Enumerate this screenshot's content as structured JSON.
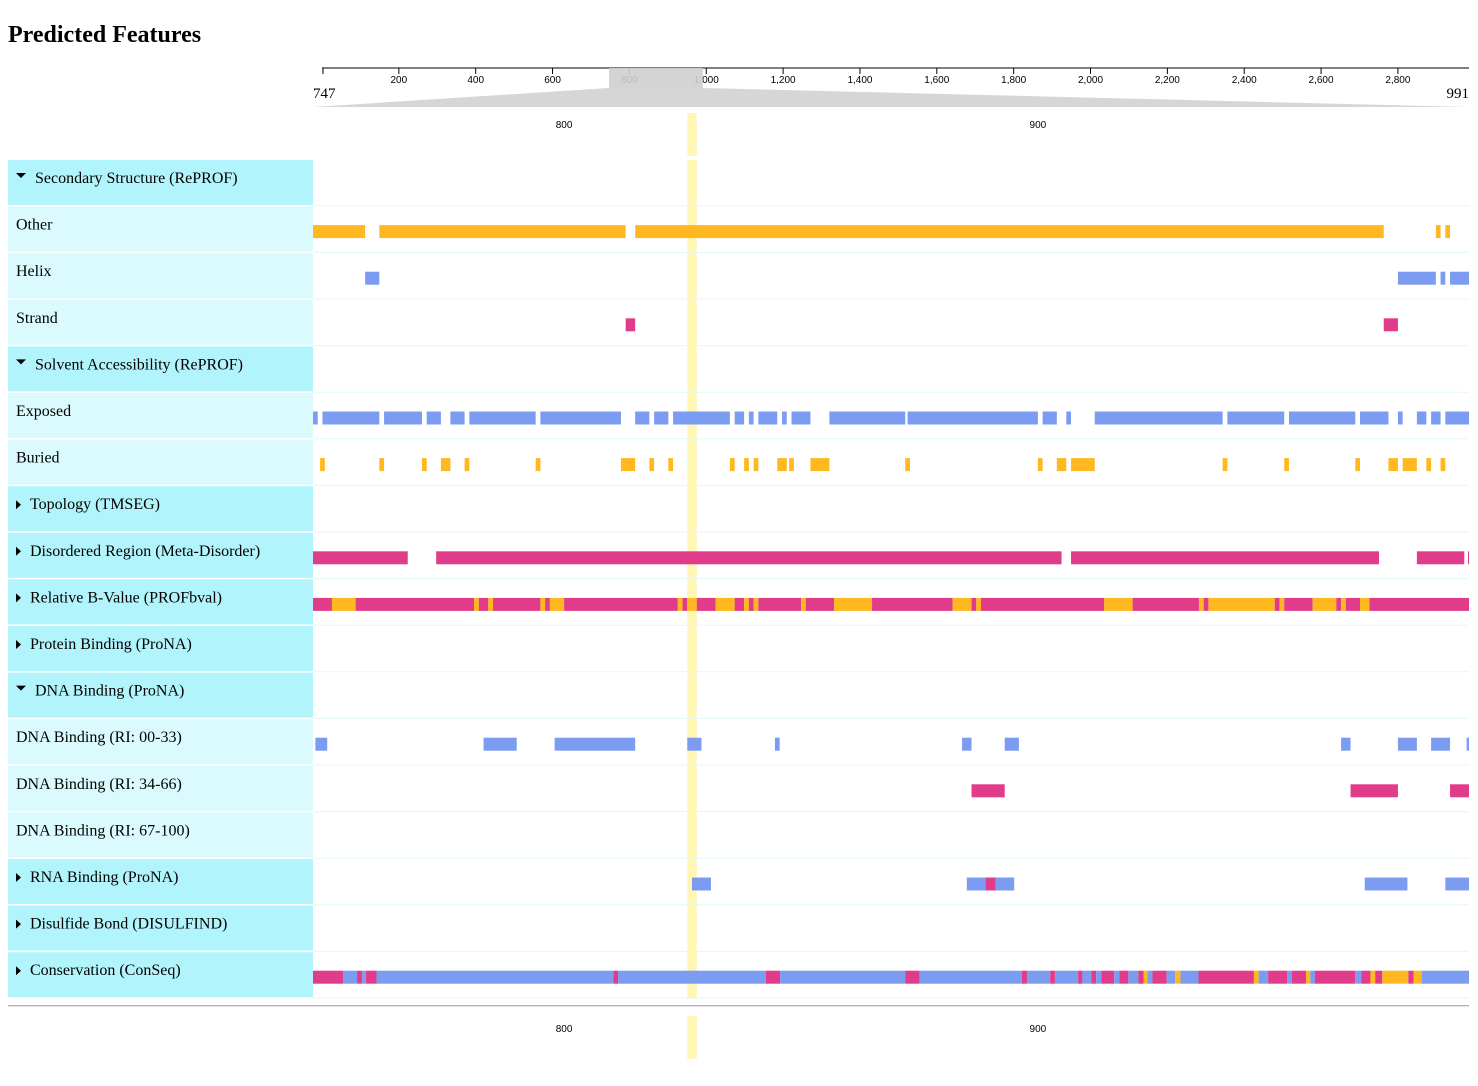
{
  "title": "Predicted Features",
  "overview": {
    "xlim": [
      0,
      2985
    ],
    "xticks": [
      200,
      400,
      600,
      800,
      {
        "value": 1000,
        "label": "1,000"
      },
      {
        "value": 1200,
        "label": "1,200"
      },
      {
        "value": 1400,
        "label": "1,400"
      },
      {
        "value": 1600,
        "label": "1,600"
      },
      {
        "value": 1800,
        "label": "1,800"
      },
      {
        "value": 2000,
        "label": "2,000"
      },
      {
        "value": 2200,
        "label": "2,200"
      },
      {
        "value": 2400,
        "label": "2,400"
      },
      {
        "value": 2600,
        "label": "2,600"
      },
      {
        "value": 2800,
        "label": "2,800"
      }
    ]
  },
  "view": {
    "start": 747,
    "end": 991,
    "ticks": [
      800,
      900
    ],
    "highlight": [
      826,
      828
    ]
  },
  "palette": [
    "#ffb81f",
    "#7b9cf0",
    "#e03c8a"
  ],
  "tracks": [
    {
      "label": "Secondary Structure (RePROF)",
      "expanded": true,
      "rows": [
        {
          "label": "Other",
          "features": [
            [
              747,
              758,
              0
            ],
            [
              761,
              813,
              0
            ],
            [
              815,
              973,
              0
            ],
            [
              984,
              985,
              0
            ],
            [
              986,
              987,
              0
            ]
          ]
        },
        {
          "label": "Helix",
          "features": [
            [
              758,
              761,
              1
            ],
            [
              976,
              984,
              1
            ],
            [
              985,
              986,
              1
            ],
            [
              987,
              991,
              1
            ]
          ]
        },
        {
          "label": "Strand",
          "features": [
            [
              813,
              815,
              2
            ],
            [
              973,
              976,
              2
            ]
          ]
        }
      ]
    },
    {
      "label": "Solvent Accessibility (RePROF)",
      "expanded": true,
      "rows": [
        {
          "label": "Exposed",
          "features": [
            [
              747,
              748,
              1
            ],
            [
              749,
              761,
              1
            ],
            [
              762,
              770,
              1
            ],
            [
              771,
              774,
              1
            ],
            [
              776,
              779,
              1
            ],
            [
              780,
              794,
              1
            ],
            [
              795,
              812,
              1
            ],
            [
              815,
              818,
              1
            ],
            [
              819,
              822,
              1
            ],
            [
              823,
              835,
              1
            ],
            [
              836,
              838,
              1
            ],
            [
              839,
              840,
              1
            ],
            [
              841,
              845,
              1
            ],
            [
              846,
              847,
              1
            ],
            [
              848,
              852,
              1
            ],
            [
              856,
              872,
              1
            ],
            [
              872.5,
              900,
              1
            ],
            [
              901,
              904,
              1
            ],
            [
              906,
              907,
              1
            ],
            [
              912,
              939,
              1
            ],
            [
              940,
              952,
              1
            ],
            [
              953,
              967,
              1
            ],
            [
              968,
              974,
              1
            ],
            [
              976,
              977,
              1
            ],
            [
              980,
              982,
              1
            ],
            [
              983,
              985,
              1
            ],
            [
              986,
              991,
              1
            ]
          ]
        },
        {
          "label": "Buried",
          "features": [
            [
              748.5,
              749.5,
              0
            ],
            [
              761,
              762,
              0
            ],
            [
              770,
              771,
              0
            ],
            [
              774,
              776,
              0
            ],
            [
              779,
              780,
              0
            ],
            [
              794,
              795,
              0
            ],
            [
              812,
              815,
              0
            ],
            [
              818,
              819,
              0
            ],
            [
              822,
              823,
              0
            ],
            [
              835,
              836,
              0
            ],
            [
              838,
              839,
              0
            ],
            [
              840,
              841,
              0
            ],
            [
              845,
              847,
              0
            ],
            [
              847.5,
              848.5,
              0
            ],
            [
              852,
              856,
              0
            ],
            [
              872,
              873,
              0
            ],
            [
              900,
              901,
              0
            ],
            [
              904,
              906,
              0
            ],
            [
              907,
              912,
              0
            ],
            [
              939,
              940,
              0
            ],
            [
              952,
              953,
              0
            ],
            [
              967,
              968,
              0
            ],
            [
              974,
              976,
              0
            ],
            [
              977,
              980,
              0
            ],
            [
              982,
              983,
              0
            ],
            [
              985,
              986,
              0
            ]
          ]
        }
      ]
    },
    {
      "label": "Topology (TMSEG)",
      "expanded": false
    },
    {
      "label": "Disordered Region (Meta-Disorder)",
      "expanded": false,
      "features": [
        [
          747,
          767,
          2
        ],
        [
          773,
          905,
          2
        ],
        [
          907,
          972,
          2
        ],
        [
          980,
          990,
          2
        ],
        [
          990.8,
          991,
          2
        ]
      ]
    },
    {
      "label": "Relative B-Value (PROFbval)",
      "expanded": false,
      "features": [
        [
          747,
          751,
          2
        ],
        [
          751,
          756,
          0
        ],
        [
          756,
          781,
          2
        ],
        [
          781,
          782,
          0
        ],
        [
          782,
          784,
          2
        ],
        [
          784,
          785,
          0
        ],
        [
          785,
          795,
          2
        ],
        [
          795,
          796,
          0
        ],
        [
          796,
          797,
          2
        ],
        [
          797,
          800,
          0
        ],
        [
          800,
          824,
          2
        ],
        [
          824,
          825,
          0
        ],
        [
          825,
          826,
          2
        ],
        [
          826,
          828,
          0
        ],
        [
          828,
          832,
          2
        ],
        [
          832,
          836,
          0
        ],
        [
          836,
          838,
          2
        ],
        [
          838,
          839,
          0
        ],
        [
          839,
          840,
          2
        ],
        [
          840,
          841,
          0
        ],
        [
          841,
          850,
          2
        ],
        [
          850,
          851,
          0
        ],
        [
          851,
          857,
          2
        ],
        [
          857,
          865,
          0
        ],
        [
          865,
          882,
          2
        ],
        [
          882,
          886,
          0
        ],
        [
          886,
          887,
          2
        ],
        [
          887,
          888,
          0
        ],
        [
          888,
          914,
          2
        ],
        [
          914,
          920,
          0
        ],
        [
          920,
          934,
          2
        ],
        [
          934,
          935,
          0
        ],
        [
          935,
          936,
          2
        ],
        [
          936,
          950,
          0
        ],
        [
          950,
          951,
          2
        ],
        [
          951,
          952,
          0
        ],
        [
          952,
          958,
          2
        ],
        [
          958,
          963,
          0
        ],
        [
          963,
          964,
          2
        ],
        [
          964,
          965,
          0
        ],
        [
          965,
          968,
          2
        ],
        [
          968,
          970,
          0
        ],
        [
          970,
          991,
          2
        ]
      ]
    },
    {
      "label": "Protein Binding (ProNA)",
      "expanded": false
    },
    {
      "label": "DNA Binding (ProNA)",
      "expanded": true,
      "rows": [
        {
          "label": "DNA Binding (RI: 00-33)",
          "features": [
            [
              747.5,
              750,
              1
            ],
            [
              783,
              790,
              1
            ],
            [
              798,
              815,
              1
            ],
            [
              826,
              829,
              1
            ],
            [
              844.5,
              845.5,
              1
            ],
            [
              884,
              886,
              1
            ],
            [
              893,
              896,
              1
            ],
            [
              964,
              966,
              1
            ],
            [
              976,
              980,
              1
            ],
            [
              983,
              987,
              1
            ],
            [
              990.5,
              991,
              1
            ]
          ]
        },
        {
          "label": "DNA Binding (RI: 34-66)",
          "features": [
            [
              886,
              893,
              2
            ],
            [
              966,
              976,
              2
            ],
            [
              987,
              991,
              2
            ]
          ]
        },
        {
          "label": "DNA Binding (RI: 67-100)",
          "features": []
        }
      ]
    },
    {
      "label": "RNA Binding (ProNA)",
      "expanded": false,
      "features": [
        [
          827,
          831,
          1
        ],
        [
          885,
          895,
          1
        ],
        [
          889,
          891,
          2
        ],
        [
          969,
          978,
          1
        ],
        [
          986,
          991,
          1
        ]
      ]
    },
    {
      "label": "Disulfide Bond (DISULFIND)",
      "expanded": false
    },
    {
      "label": "Conservation (ConSeq)",
      "expanded": false,
      "features": [
        [
          747,
          753.4,
          2
        ],
        [
          753.4,
          756.3,
          1
        ],
        [
          756.3,
          757.4,
          2
        ],
        [
          757.4,
          758.2,
          1
        ],
        [
          758.2,
          760.4,
          2
        ],
        [
          760.4,
          810.4,
          1
        ],
        [
          810.4,
          811.4,
          2
        ],
        [
          811.4,
          842.6,
          1
        ],
        [
          842.6,
          845.6,
          2
        ],
        [
          845.6,
          872,
          1
        ],
        [
          872,
          875,
          2
        ],
        [
          875,
          896.6,
          1
        ],
        [
          896.6,
          897.7,
          2
        ],
        [
          897.7,
          902.6,
          1
        ],
        [
          902.6,
          903.6,
          2
        ],
        [
          903.6,
          908.5,
          1
        ],
        [
          908.5,
          909.4,
          2
        ],
        [
          909.4,
          911.3,
          1
        ],
        [
          911.3,
          912.3,
          2
        ],
        [
          912.3,
          913.4,
          1
        ],
        [
          913.4,
          916.1,
          2
        ],
        [
          916.1,
          917.2,
          1
        ],
        [
          917.2,
          919.1,
          2
        ],
        [
          919.1,
          921.2,
          1
        ],
        [
          921.2,
          922.3,
          2
        ],
        [
          922.3,
          923.1,
          0
        ],
        [
          923.1,
          924.2,
          1
        ],
        [
          924.2,
          927.2,
          2
        ],
        [
          927.2,
          929,
          1
        ],
        [
          929,
          930.1,
          0
        ],
        [
          930.1,
          933.9,
          1
        ],
        [
          933.9,
          945.6,
          2
        ],
        [
          945.6,
          946.6,
          0
        ],
        [
          946.6,
          948.6,
          1
        ],
        [
          948.6,
          952.6,
          2
        ],
        [
          952.6,
          953.6,
          1
        ],
        [
          953.6,
          956.6,
          2
        ],
        [
          956.6,
          957.5,
          0
        ],
        [
          957.5,
          958.5,
          1
        ],
        [
          958.5,
          967,
          2
        ],
        [
          967,
          968.3,
          1
        ],
        [
          968.3,
          970.2,
          2
        ],
        [
          970.2,
          971.2,
          0
        ],
        [
          971.2,
          972.7,
          2
        ],
        [
          972.7,
          978.2,
          0
        ],
        [
          978.2,
          979.3,
          2
        ],
        [
          979.3,
          981,
          0
        ],
        [
          981,
          991,
          1
        ]
      ]
    }
  ]
}
